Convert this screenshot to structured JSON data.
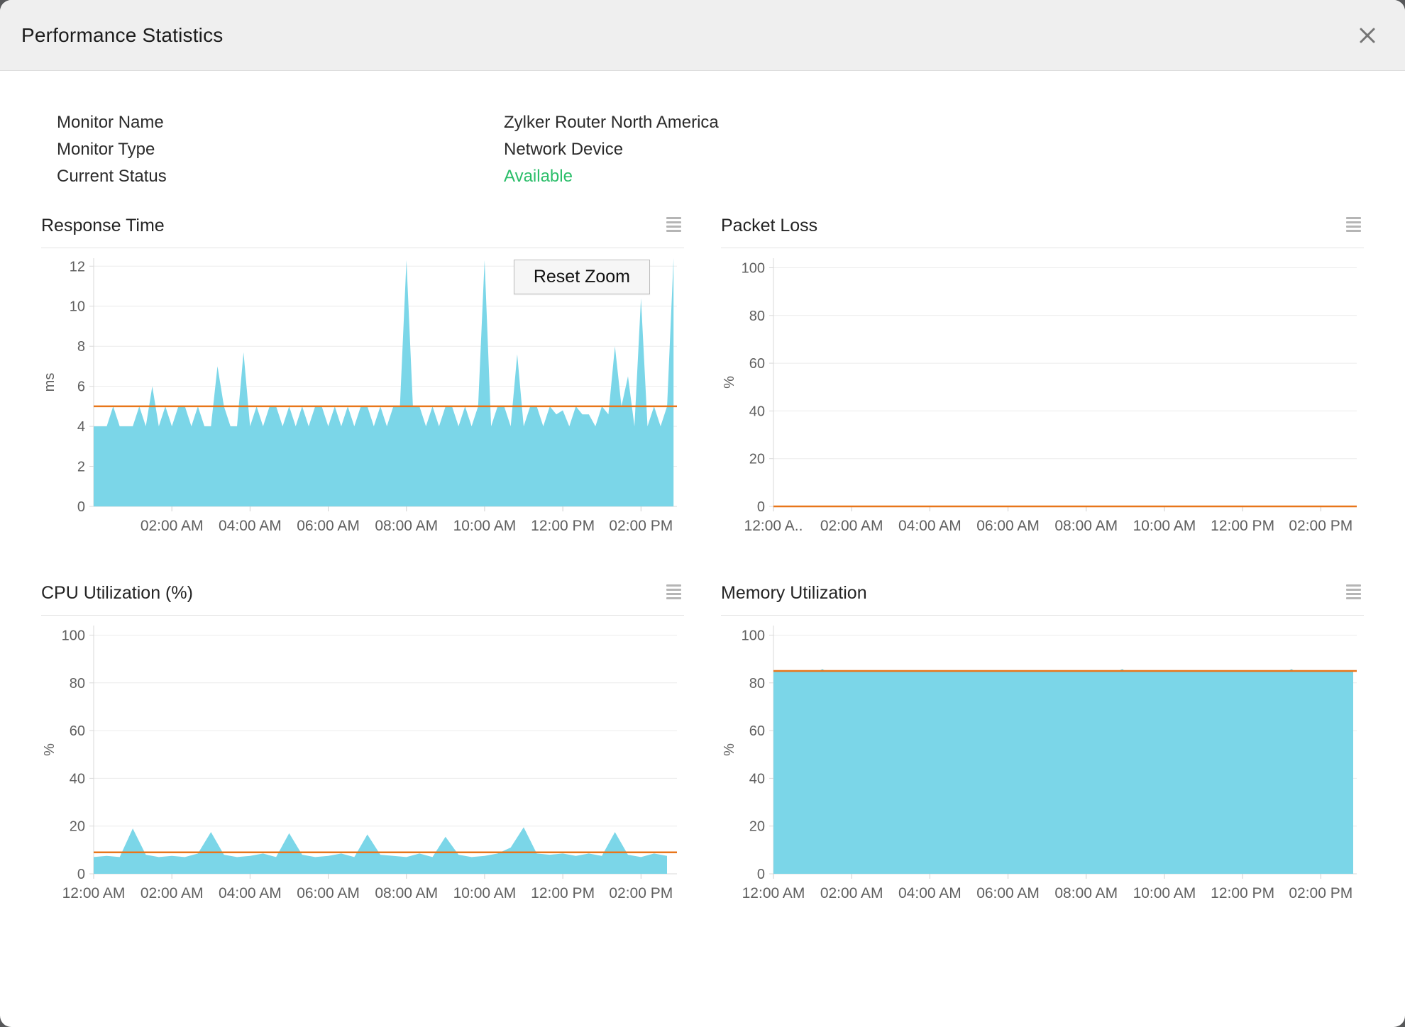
{
  "dialog": {
    "title": "Performance Statistics"
  },
  "icons": {
    "close": "close-icon",
    "chart_menu": "hamburger-menu-icon"
  },
  "info": {
    "rows": [
      {
        "label": "Monitor Name",
        "value": "Zylker Router North America"
      },
      {
        "label": "Monitor Type",
        "value": "Network Device"
      },
      {
        "label": "Current Status",
        "value": "Available",
        "value_color": "#2bbe6a"
      }
    ]
  },
  "labels": {
    "reset_zoom": "Reset Zoom"
  },
  "colors": {
    "area_fill": "#7bd6e8",
    "threshold_line": "#e8761a",
    "status_available": "#2bbe6a",
    "axis_text": "#5f5f5f",
    "gridline": "#ececec",
    "axis_line": "#d9d9d9"
  },
  "chart_data": [
    {
      "type": "area",
      "title": "Response Time",
      "ylabel": "ms",
      "ylim": [
        0,
        12.4
      ],
      "yticks": [
        0,
        2,
        4,
        6,
        8,
        10,
        12
      ],
      "xlim": [
        0,
        14.92
      ],
      "xticks": [
        [
          2,
          "02:00 AM"
        ],
        [
          4,
          "04:00 AM"
        ],
        [
          6,
          "06:00 AM"
        ],
        [
          8,
          "08:00 AM"
        ],
        [
          10,
          "10:00 AM"
        ],
        [
          12,
          "12:00 PM"
        ],
        [
          14,
          "02:00 PM"
        ]
      ],
      "threshold": 5,
      "series_name": "Response Time (ms)",
      "color": "#7bd6e8",
      "x_start": 0,
      "x_step": 0.16667,
      "values": [
        4,
        4,
        4,
        5,
        4,
        4,
        4,
        5,
        4,
        6,
        4,
        5,
        4,
        5,
        5,
        4,
        5,
        4,
        4,
        7,
        5,
        4,
        4,
        7.7,
        4,
        5,
        4,
        5,
        5,
        4,
        5,
        4,
        5,
        4,
        5,
        5,
        4,
        5,
        4,
        5,
        4,
        5,
        5,
        4,
        5,
        4,
        5,
        5,
        12.3,
        5,
        5,
        4,
        5,
        4,
        5,
        5,
        4,
        5,
        4,
        5,
        12.3,
        4,
        5,
        5,
        4,
        7.6,
        4,
        5,
        5,
        4,
        5,
        4.6,
        4.8,
        4,
        5,
        4.6,
        4.6,
        4,
        5,
        4.6,
        8,
        5,
        6.5,
        4,
        10.4,
        4,
        5,
        4,
        5,
        12.4
      ],
      "has_reset_zoom": true,
      "legend_position": "none",
      "grid": true
    },
    {
      "type": "area",
      "title": "Packet Loss",
      "ylabel": "%",
      "ylim": [
        0,
        104
      ],
      "yticks": [
        0,
        20,
        40,
        60,
        80,
        100
      ],
      "xlim": [
        0,
        14.92
      ],
      "xticks": [
        [
          0,
          "12:00 A.."
        ],
        [
          2,
          "02:00 AM"
        ],
        [
          4,
          "04:00 AM"
        ],
        [
          6,
          "06:00 AM"
        ],
        [
          8,
          "08:00 AM"
        ],
        [
          10,
          "10:00 AM"
        ],
        [
          12,
          "12:00 PM"
        ],
        [
          14,
          "02:00 PM"
        ]
      ],
      "threshold": 0,
      "series_name": "Packet Loss (%)",
      "color": "#7bd6e8",
      "points": [
        [
          0,
          0
        ],
        [
          14.83,
          0
        ]
      ],
      "legend_position": "none",
      "grid": true
    },
    {
      "type": "area",
      "title": "CPU Utilization (%)",
      "ylabel": "%",
      "ylim": [
        0,
        104
      ],
      "yticks": [
        0,
        20,
        40,
        60,
        80,
        100
      ],
      "xlim": [
        0,
        14.92
      ],
      "xticks": [
        [
          0,
          "12:00 AM"
        ],
        [
          2,
          "02:00 AM"
        ],
        [
          4,
          "04:00 AM"
        ],
        [
          6,
          "06:00 AM"
        ],
        [
          8,
          "08:00 AM"
        ],
        [
          10,
          "10:00 AM"
        ],
        [
          12,
          "12:00 PM"
        ],
        [
          14,
          "02:00 PM"
        ]
      ],
      "threshold": 9,
      "series_name": "CPU Utilization (%)",
      "color": "#7bd6e8",
      "x_start": 0,
      "x_step": 0.33333,
      "values": [
        7,
        7.5,
        7,
        19,
        8,
        7,
        7.5,
        7,
        8.5,
        17.5,
        8,
        7,
        7.5,
        8.5,
        7,
        17,
        8,
        7,
        7.5,
        8.5,
        7,
        16.5,
        8,
        7.5,
        7,
        8.5,
        7,
        15.5,
        8,
        7,
        7.5,
        8.5,
        11,
        19.5,
        8.5,
        8,
        8.5,
        7.5,
        8.5,
        7.5,
        17.5,
        8,
        7,
        8.5,
        7.5
      ],
      "legend_position": "none",
      "grid": true
    },
    {
      "type": "area",
      "title": "Memory Utilization",
      "ylabel": "%",
      "ylim": [
        0,
        104
      ],
      "yticks": [
        0,
        20,
        40,
        60,
        80,
        100
      ],
      "xlim": [
        0,
        14.92
      ],
      "xticks": [
        [
          0,
          "12:00 AM"
        ],
        [
          2,
          "02:00 AM"
        ],
        [
          4,
          "04:00 AM"
        ],
        [
          6,
          "06:00 AM"
        ],
        [
          8,
          "08:00 AM"
        ],
        [
          10,
          "10:00 AM"
        ],
        [
          12,
          "12:00 PM"
        ],
        [
          14,
          "02:00 PM"
        ]
      ],
      "threshold": 85,
      "series_name": "Memory Utilization (%)",
      "color": "#7bd6e8",
      "points": [
        [
          0,
          85
        ],
        [
          1.17,
          85
        ],
        [
          1.25,
          85.8
        ],
        [
          1.33,
          85
        ],
        [
          8.83,
          85
        ],
        [
          8.92,
          85.8
        ],
        [
          9.0,
          85
        ],
        [
          13.17,
          85
        ],
        [
          13.25,
          85.8
        ],
        [
          13.33,
          85
        ],
        [
          14.83,
          85
        ]
      ],
      "legend_position": "none",
      "grid": true
    }
  ]
}
